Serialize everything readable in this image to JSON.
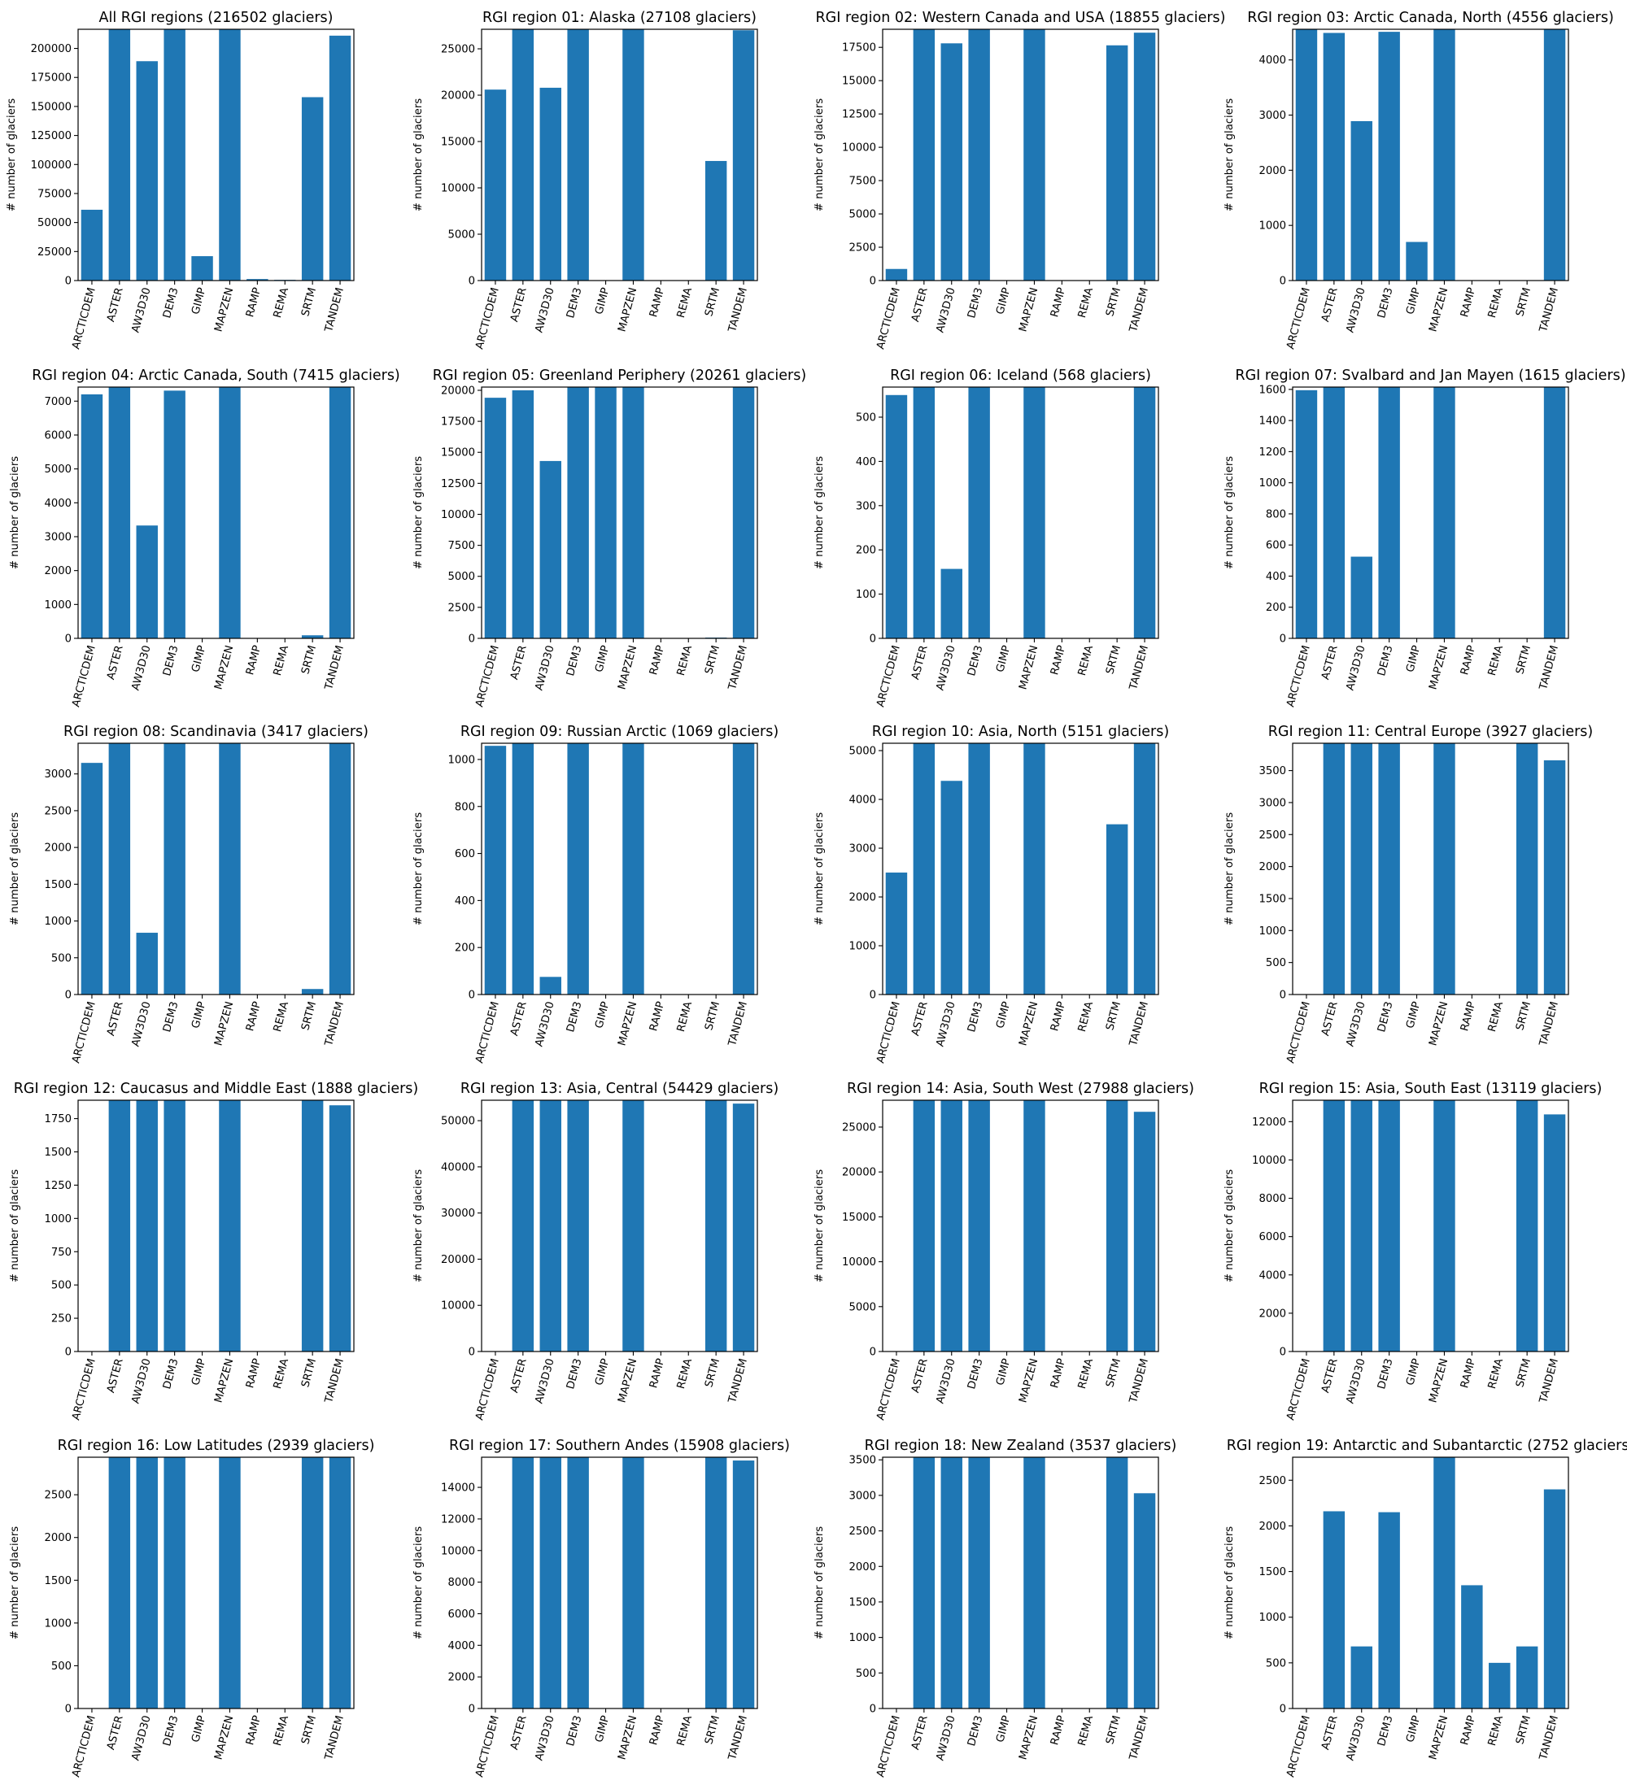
{
  "chart_data": [
    {
      "type": "bar",
      "title": "All RGI regions (216502 glaciers)",
      "ylabel": "# number of glaciers",
      "categories": [
        "ARCTICDEM",
        "ASTER",
        "AW3D30",
        "DEM3",
        "GIMP",
        "MAPZEN",
        "RAMP",
        "REMA",
        "SRTM",
        "TANDEM"
      ],
      "values": [
        61000,
        216502,
        189000,
        216502,
        21000,
        216502,
        1300,
        600,
        158000,
        211000
      ],
      "ylim": [
        0,
        216502
      ],
      "yticks": [
        0,
        25000,
        50000,
        75000,
        100000,
        125000,
        150000,
        175000,
        200000
      ],
      "grid": false
    },
    {
      "type": "bar",
      "title": "RGI region 01: Alaska (27108 glaciers)",
      "ylabel": "# number of glaciers",
      "categories": [
        "ARCTICDEM",
        "ASTER",
        "AW3D30",
        "DEM3",
        "GIMP",
        "MAPZEN",
        "RAMP",
        "REMA",
        "SRTM",
        "TANDEM"
      ],
      "values": [
        20600,
        27108,
        20800,
        27108,
        0,
        27108,
        0,
        0,
        12900,
        27000
      ],
      "ylim": [
        0,
        27108
      ],
      "yticks": [
        0,
        5000,
        10000,
        15000,
        20000,
        25000
      ],
      "grid": false
    },
    {
      "type": "bar",
      "title": "RGI region 02: Western Canada and USA (18855 glaciers)",
      "ylabel": "# number of glaciers",
      "categories": [
        "ARCTICDEM",
        "ASTER",
        "AW3D30",
        "DEM3",
        "GIMP",
        "MAPZEN",
        "RAMP",
        "REMA",
        "SRTM",
        "TANDEM"
      ],
      "values": [
        870,
        18855,
        17800,
        18855,
        0,
        18855,
        0,
        0,
        17650,
        18600
      ],
      "ylim": [
        0,
        18855
      ],
      "yticks": [
        0,
        2500,
        5000,
        7500,
        10000,
        12500,
        15000,
        17500
      ],
      "grid": false
    },
    {
      "type": "bar",
      "title": "RGI region 03: Arctic Canada, North (4556 glaciers)",
      "ylabel": "# number of glaciers",
      "categories": [
        "ARCTICDEM",
        "ASTER",
        "AW3D30",
        "DEM3",
        "GIMP",
        "MAPZEN",
        "RAMP",
        "REMA",
        "SRTM",
        "TANDEM"
      ],
      "values": [
        4556,
        4490,
        2890,
        4510,
        700,
        4556,
        0,
        0,
        0,
        4556
      ],
      "ylim": [
        0,
        4556
      ],
      "yticks": [
        0,
        1000,
        2000,
        3000,
        4000
      ],
      "grid": false
    },
    {
      "type": "bar",
      "title": "RGI region 04: Arctic Canada, South (7415 glaciers)",
      "ylabel": "# number of glaciers",
      "categories": [
        "ARCTICDEM",
        "ASTER",
        "AW3D30",
        "DEM3",
        "GIMP",
        "MAPZEN",
        "RAMP",
        "REMA",
        "SRTM",
        "TANDEM"
      ],
      "values": [
        7200,
        7415,
        3330,
        7310,
        0,
        7415,
        0,
        0,
        90,
        7415
      ],
      "ylim": [
        0,
        7415
      ],
      "yticks": [
        0,
        1000,
        2000,
        3000,
        4000,
        5000,
        6000,
        7000
      ],
      "grid": false
    },
    {
      "type": "bar",
      "title": "RGI region 05: Greenland Periphery (20261 glaciers)",
      "ylabel": "# number of glaciers",
      "categories": [
        "ARCTICDEM",
        "ASTER",
        "AW3D30",
        "DEM3",
        "GIMP",
        "MAPZEN",
        "RAMP",
        "REMA",
        "SRTM",
        "TANDEM"
      ],
      "values": [
        19400,
        20000,
        14300,
        20261,
        20261,
        20261,
        0,
        0,
        60,
        20261
      ],
      "ylim": [
        0,
        20261
      ],
      "yticks": [
        0,
        2500,
        5000,
        7500,
        10000,
        12500,
        15000,
        17500,
        20000
      ],
      "grid": false
    },
    {
      "type": "bar",
      "title": "RGI region 06: Iceland (568 glaciers)",
      "ylabel": "# number of glaciers",
      "categories": [
        "ARCTICDEM",
        "ASTER",
        "AW3D30",
        "DEM3",
        "GIMP",
        "MAPZEN",
        "RAMP",
        "REMA",
        "SRTM",
        "TANDEM"
      ],
      "values": [
        550,
        568,
        157,
        568,
        0,
        568,
        0,
        0,
        0,
        568
      ],
      "ylim": [
        0,
        568
      ],
      "yticks": [
        0,
        100,
        200,
        300,
        400,
        500
      ],
      "grid": false
    },
    {
      "type": "bar",
      "title": "RGI region 07: Svalbard and Jan Mayen (1615 glaciers)",
      "ylabel": "# number of glaciers",
      "categories": [
        "ARCTICDEM",
        "ASTER",
        "AW3D30",
        "DEM3",
        "GIMP",
        "MAPZEN",
        "RAMP",
        "REMA",
        "SRTM",
        "TANDEM"
      ],
      "values": [
        1595,
        1615,
        525,
        1615,
        0,
        1615,
        0,
        0,
        0,
        1615
      ],
      "ylim": [
        0,
        1615
      ],
      "yticks": [
        0,
        200,
        400,
        600,
        800,
        1000,
        1200,
        1400,
        1600
      ],
      "grid": false
    },
    {
      "type": "bar",
      "title": "RGI region 08: Scandinavia (3417 glaciers)",
      "ylabel": "# number of glaciers",
      "categories": [
        "ARCTICDEM",
        "ASTER",
        "AW3D30",
        "DEM3",
        "GIMP",
        "MAPZEN",
        "RAMP",
        "REMA",
        "SRTM",
        "TANDEM"
      ],
      "values": [
        3150,
        3417,
        840,
        3417,
        0,
        3417,
        0,
        0,
        75,
        3417
      ],
      "ylim": [
        0,
        3417
      ],
      "yticks": [
        0,
        500,
        1000,
        1500,
        2000,
        2500,
        3000
      ],
      "grid": false
    },
    {
      "type": "bar",
      "title": "RGI region 09: Russian Arctic (1069 glaciers)",
      "ylabel": "# number of glaciers",
      "categories": [
        "ARCTICDEM",
        "ASTER",
        "AW3D30",
        "DEM3",
        "GIMP",
        "MAPZEN",
        "RAMP",
        "REMA",
        "SRTM",
        "TANDEM"
      ],
      "values": [
        1058,
        1069,
        75,
        1069,
        0,
        1069,
        0,
        0,
        0,
        1069
      ],
      "ylim": [
        0,
        1069
      ],
      "yticks": [
        0,
        200,
        400,
        600,
        800,
        1000
      ],
      "grid": false
    },
    {
      "type": "bar",
      "title": "RGI region 10: Asia, North (5151 glaciers)",
      "ylabel": "# number of glaciers",
      "categories": [
        "ARCTICDEM",
        "ASTER",
        "AW3D30",
        "DEM3",
        "GIMP",
        "MAPZEN",
        "RAMP",
        "REMA",
        "SRTM",
        "TANDEM"
      ],
      "values": [
        2500,
        5151,
        4380,
        5151,
        0,
        5151,
        0,
        0,
        3490,
        5151
      ],
      "ylim": [
        0,
        5151
      ],
      "yticks": [
        0,
        1000,
        2000,
        3000,
        4000,
        5000
      ],
      "grid": false
    },
    {
      "type": "bar",
      "title": "RGI region 11: Central Europe (3927 glaciers)",
      "ylabel": "# number of glaciers",
      "categories": [
        "ARCTICDEM",
        "ASTER",
        "AW3D30",
        "DEM3",
        "GIMP",
        "MAPZEN",
        "RAMP",
        "REMA",
        "SRTM",
        "TANDEM"
      ],
      "values": [
        0,
        3927,
        3927,
        3927,
        0,
        3927,
        0,
        0,
        3927,
        3660
      ],
      "ylim": [
        0,
        3927
      ],
      "yticks": [
        0,
        500,
        1000,
        1500,
        2000,
        2500,
        3000,
        3500
      ],
      "grid": false
    },
    {
      "type": "bar",
      "title": "RGI region 12: Caucasus and Middle East (1888 glaciers)",
      "ylabel": "# number of glaciers",
      "categories": [
        "ARCTICDEM",
        "ASTER",
        "AW3D30",
        "DEM3",
        "GIMP",
        "MAPZEN",
        "RAMP",
        "REMA",
        "SRTM",
        "TANDEM"
      ],
      "values": [
        0,
        1888,
        1888,
        1888,
        0,
        1888,
        0,
        0,
        1888,
        1850
      ],
      "ylim": [
        0,
        1888
      ],
      "yticks": [
        0,
        250,
        500,
        750,
        1000,
        1250,
        1500,
        1750
      ],
      "grid": false
    },
    {
      "type": "bar",
      "title": "RGI region 13: Asia, Central (54429 glaciers)",
      "ylabel": "# number of glaciers",
      "categories": [
        "ARCTICDEM",
        "ASTER",
        "AW3D30",
        "DEM3",
        "GIMP",
        "MAPZEN",
        "RAMP",
        "REMA",
        "SRTM",
        "TANDEM"
      ],
      "values": [
        0,
        54429,
        54429,
        54429,
        0,
        54429,
        0,
        0,
        54429,
        53700
      ],
      "ylim": [
        0,
        54429
      ],
      "yticks": [
        0,
        10000,
        20000,
        30000,
        40000,
        50000
      ],
      "grid": false
    },
    {
      "type": "bar",
      "title": "RGI region 14: Asia, South West (27988 glaciers)",
      "ylabel": "# number of glaciers",
      "categories": [
        "ARCTICDEM",
        "ASTER",
        "AW3D30",
        "DEM3",
        "GIMP",
        "MAPZEN",
        "RAMP",
        "REMA",
        "SRTM",
        "TANDEM"
      ],
      "values": [
        0,
        27988,
        27988,
        27988,
        0,
        27988,
        0,
        0,
        27988,
        26700
      ],
      "ylim": [
        0,
        27988
      ],
      "yticks": [
        0,
        5000,
        10000,
        15000,
        20000,
        25000
      ],
      "grid": false
    },
    {
      "type": "bar",
      "title": "RGI region 15: Asia, South East (13119 glaciers)",
      "ylabel": "# number of glaciers",
      "categories": [
        "ARCTICDEM",
        "ASTER",
        "AW3D30",
        "DEM3",
        "GIMP",
        "MAPZEN",
        "RAMP",
        "REMA",
        "SRTM",
        "TANDEM"
      ],
      "values": [
        0,
        13119,
        13119,
        13119,
        0,
        13119,
        0,
        0,
        13119,
        12380
      ],
      "ylim": [
        0,
        13119
      ],
      "yticks": [
        0,
        2000,
        4000,
        6000,
        8000,
        10000,
        12000
      ],
      "grid": false
    },
    {
      "type": "bar",
      "title": "RGI region 16: Low Latitudes (2939 glaciers)",
      "ylabel": "# number of glaciers",
      "categories": [
        "ARCTICDEM",
        "ASTER",
        "AW3D30",
        "DEM3",
        "GIMP",
        "MAPZEN",
        "RAMP",
        "REMA",
        "SRTM",
        "TANDEM"
      ],
      "values": [
        0,
        2939,
        2939,
        2939,
        0,
        2939,
        0,
        0,
        2939,
        2939
      ],
      "ylim": [
        0,
        2939
      ],
      "yticks": [
        0,
        500,
        1000,
        1500,
        2000,
        2500
      ],
      "grid": false
    },
    {
      "type": "bar",
      "title": "RGI region 17: Southern Andes (15908 glaciers)",
      "ylabel": "# number of glaciers",
      "categories": [
        "ARCTICDEM",
        "ASTER",
        "AW3D30",
        "DEM3",
        "GIMP",
        "MAPZEN",
        "RAMP",
        "REMA",
        "SRTM",
        "TANDEM"
      ],
      "values": [
        0,
        15908,
        15908,
        15908,
        0,
        15908,
        0,
        0,
        15908,
        15700
      ],
      "ylim": [
        0,
        15908
      ],
      "yticks": [
        0,
        2000,
        4000,
        6000,
        8000,
        10000,
        12000,
        14000
      ],
      "grid": false
    },
    {
      "type": "bar",
      "title": "RGI region 18: New Zealand (3537 glaciers)",
      "ylabel": "# number of glaciers",
      "categories": [
        "ARCTICDEM",
        "ASTER",
        "AW3D30",
        "DEM3",
        "GIMP",
        "MAPZEN",
        "RAMP",
        "REMA",
        "SRTM",
        "TANDEM"
      ],
      "values": [
        0,
        3537,
        3537,
        3537,
        0,
        3537,
        0,
        0,
        3537,
        3030
      ],
      "ylim": [
        0,
        3537
      ],
      "yticks": [
        0,
        500,
        1000,
        1500,
        2000,
        2500,
        3000,
        3500
      ],
      "grid": false
    },
    {
      "type": "bar",
      "title": "RGI region 19: Antarctic and Subantarctic (2752 glaciers)",
      "ylabel": "# number of glaciers",
      "categories": [
        "ARCTICDEM",
        "ASTER",
        "AW3D30",
        "DEM3",
        "GIMP",
        "MAPZEN",
        "RAMP",
        "REMA",
        "SRTM",
        "TANDEM"
      ],
      "values": [
        0,
        2160,
        680,
        2150,
        0,
        2752,
        1350,
        500,
        680,
        2400
      ],
      "ylim": [
        0,
        2752
      ],
      "yticks": [
        0,
        500,
        1000,
        1500,
        2000,
        2500
      ],
      "grid": false
    }
  ],
  "colors": {
    "bar": "#1f77b4",
    "axes": "#000000",
    "background": "#ffffff"
  }
}
